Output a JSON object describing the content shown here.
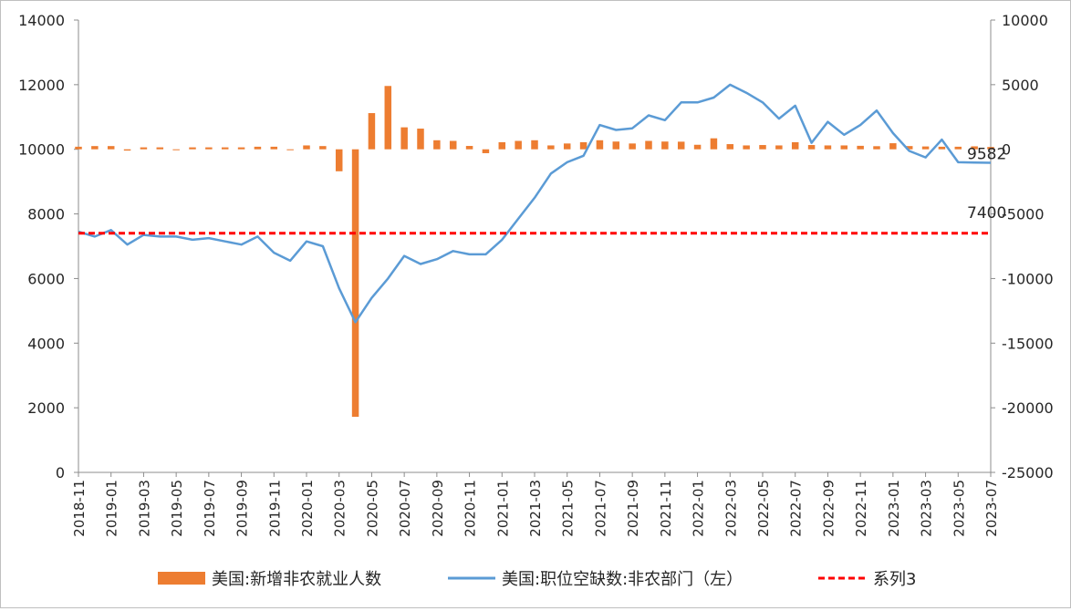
{
  "chart_data": {
    "type": "bar+line",
    "title": "",
    "x": [
      "2018-11",
      "2018-12",
      "2019-01",
      "2019-02",
      "2019-03",
      "2019-04",
      "2019-05",
      "2019-06",
      "2019-07",
      "2019-08",
      "2019-09",
      "2019-10",
      "2019-11",
      "2019-12",
      "2020-01",
      "2020-02",
      "2020-03",
      "2020-04",
      "2020-05",
      "2020-06",
      "2020-07",
      "2020-08",
      "2020-09",
      "2020-10",
      "2020-11",
      "2020-12",
      "2021-01",
      "2021-02",
      "2021-03",
      "2021-04",
      "2021-05",
      "2021-06",
      "2021-07",
      "2021-08",
      "2021-09",
      "2021-10",
      "2021-11",
      "2021-12",
      "2022-01",
      "2022-02",
      "2022-03",
      "2022-04",
      "2022-05",
      "2022-06",
      "2022-07",
      "2022-08",
      "2022-09",
      "2022-10",
      "2022-11",
      "2022-12",
      "2023-01",
      "2023-02",
      "2023-03",
      "2023-04",
      "2023-05",
      "2023-06",
      "2023-07"
    ],
    "x_tick_labels": [
      "2018-11",
      "2019-01",
      "2019-03",
      "2019-05",
      "2019-07",
      "2019-09",
      "2019-11",
      "2020-01",
      "2020-03",
      "2020-05",
      "2020-07",
      "2020-09",
      "2020-11",
      "2021-01",
      "2021-03",
      "2021-05",
      "2021-07",
      "2021-09",
      "2021-11",
      "2022-01",
      "2022-03",
      "2022-05",
      "2022-07",
      "2022-09",
      "2022-11",
      "2023-01",
      "2023-03",
      "2023-05",
      "2023-07"
    ],
    "y_left": {
      "min": 0,
      "max": 14000,
      "ticks": [
        "0",
        "2000",
        "4000",
        "6000",
        "8000",
        "10000",
        "12000",
        "14000"
      ]
    },
    "y_right": {
      "min": -25000,
      "max": 10000,
      "ticks": [
        "-25000",
        "-20000",
        "-15000",
        "-10000",
        "-5000",
        "0",
        "5000",
        "10000"
      ]
    },
    "series": [
      {
        "name": "美国:新增非农就业人数",
        "type": "bar",
        "axis": "right",
        "color": "#ED7D31",
        "values": [
          200,
          250,
          250,
          -100,
          150,
          150,
          -50,
          150,
          150,
          150,
          150,
          200,
          200,
          -50,
          300,
          250,
          -1700,
          -20700,
          2800,
          4900,
          1700,
          1600,
          700,
          650,
          260,
          -300,
          550,
          650,
          700,
          300,
          450,
          550,
          700,
          600,
          450,
          650,
          600,
          590,
          350,
          850,
          400,
          300,
          330,
          300,
          550,
          330,
          300,
          300,
          270,
          240,
          470,
          250,
          220,
          200,
          200,
          230,
          180
        ]
      },
      {
        "name": "美国:职位空缺数:非农部门（左）",
        "type": "line",
        "axis": "left",
        "color": "#5B9BD5",
        "values": [
          7450,
          7300,
          7500,
          7050,
          7350,
          7300,
          7300,
          7200,
          7250,
          7150,
          7050,
          7300,
          6800,
          6550,
          7150,
          7000,
          5700,
          4650,
          5400,
          6000,
          6700,
          6450,
          6600,
          6850,
          6750,
          6750,
          7200,
          7850,
          8500,
          9250,
          9600,
          9800,
          10750,
          10600,
          10650,
          11050,
          10900,
          11450,
          11450,
          11600,
          12000,
          11750,
          11450,
          10950,
          11350,
          10200,
          10850,
          10450,
          10750,
          11200,
          10500,
          9950,
          9750,
          10300,
          9600,
          9590,
          9582
        ]
      },
      {
        "name": "系列3",
        "type": "line",
        "axis": "left",
        "dashed": true,
        "color": "#FF0000",
        "values": [
          7400,
          7400,
          7400,
          7400,
          7400,
          7400,
          7400,
          7400,
          7400,
          7400,
          7400,
          7400,
          7400,
          7400,
          7400,
          7400,
          7400,
          7400,
          7400,
          7400,
          7400,
          7400,
          7400,
          7400,
          7400,
          7400,
          7400,
          7400,
          7400,
          7400,
          7400,
          7400,
          7400,
          7400,
          7400,
          7400,
          7400,
          7400,
          7400,
          7400,
          7400,
          7400,
          7400,
          7400,
          7400,
          7400,
          7400,
          7400,
          7400,
          7400,
          7400,
          7400,
          7400,
          7400,
          7400,
          7400,
          7400
        ]
      }
    ],
    "annotations": [
      {
        "text": "9582",
        "series": 1,
        "index": 56
      },
      {
        "text": "7400",
        "series": 2,
        "index": 56
      }
    ],
    "legend_position": "bottom",
    "grid": false
  }
}
